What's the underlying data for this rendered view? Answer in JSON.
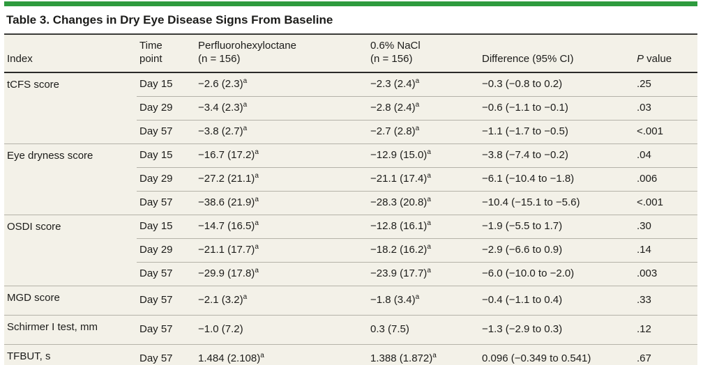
{
  "colors": {
    "brand_green": "#2e9b3e",
    "row_beige": "#f3f1e8",
    "rule_dark": "#2a2a28",
    "rule_light": "#b4b2a8",
    "text": "#1c1c1a"
  },
  "title": "Table 3. Changes in Dry Eye Disease Signs From Baseline",
  "table": {
    "headers": {
      "index": "Index",
      "time": "Time\npoint",
      "drug": "Perfluorohexyloctane\n(n = 156)",
      "nacl": "0.6% NaCl\n(n = 156)",
      "diff": "Difference (95% CI)",
      "p_italic": "P",
      "p_rest": " value"
    },
    "footnote_marker": "a",
    "groups": [
      {
        "index": "tCFS score",
        "rows": [
          {
            "time": "Day 15",
            "drug": {
              "t": "−2.6 (2.3)",
              "s": "a"
            },
            "nacl": {
              "t": "−2.3 (2.4)",
              "s": "a"
            },
            "diff": {
              "t": "−0.3 (−0.8 to 0.2)"
            },
            "p": {
              "t": ".25"
            }
          },
          {
            "time": "Day 29",
            "drug": {
              "t": "−3.4 (2.3)",
              "s": "a"
            },
            "nacl": {
              "t": "−2.8 (2.4)",
              "s": "a"
            },
            "diff": {
              "t": "−0.6 (−1.1 to −0.1)"
            },
            "p": {
              "t": ".03"
            }
          },
          {
            "time": "Day 57",
            "drug": {
              "t": "−3.8 (2.7)",
              "s": "a"
            },
            "nacl": {
              "t": "−2.7 (2.8)",
              "s": "a"
            },
            "diff": {
              "t": "−1.1 (−1.7 to −0.5)"
            },
            "p": {
              "t": "<.001"
            }
          }
        ]
      },
      {
        "index": "Eye dryness score",
        "rows": [
          {
            "time": "Day 15",
            "drug": {
              "t": "−16.7 (17.2)",
              "s": "a"
            },
            "nacl": {
              "t": "−12.9 (15.0)",
              "s": "a"
            },
            "diff": {
              "t": "−3.8 (−7.4 to −0.2)"
            },
            "p": {
              "t": ".04"
            }
          },
          {
            "time": "Day 29",
            "drug": {
              "t": "−27.2 (21.1)",
              "s": "a"
            },
            "nacl": {
              "t": "−21.1 (17.4)",
              "s": "a"
            },
            "diff": {
              "t": "−6.1 (−10.4 to −1.8)"
            },
            "p": {
              "t": ".006"
            }
          },
          {
            "time": "Day 57",
            "drug": {
              "t": "−38.6 (21.9)",
              "s": "a"
            },
            "nacl": {
              "t": "−28.3 (20.8)",
              "s": "a"
            },
            "diff": {
              "t": "−10.4 (−15.1 to −5.6)"
            },
            "p": {
              "t": "<.001"
            }
          }
        ]
      },
      {
        "index": "OSDI score",
        "rows": [
          {
            "time": "Day 15",
            "drug": {
              "t": "−14.7 (16.5)",
              "s": "a"
            },
            "nacl": {
              "t": "−12.8 (16.1)",
              "s": "a"
            },
            "diff": {
              "t": "−1.9 (−5.5 to 1.7)"
            },
            "p": {
              "t": ".30"
            }
          },
          {
            "time": "Day 29",
            "drug": {
              "t": "−21.1 (17.7)",
              "s": "a"
            },
            "nacl": {
              "t": "−18.2 (16.2)",
              "s": "a"
            },
            "diff": {
              "t": "−2.9 (−6.6 to 0.9)"
            },
            "p": {
              "t": ".14"
            }
          },
          {
            "time": "Day 57",
            "drug": {
              "t": "−29.9 (17.8)",
              "s": "a"
            },
            "nacl": {
              "t": "−23.9 (17.7)",
              "s": "a"
            },
            "diff": {
              "t": "−6.0 (−10.0 to −2.0)"
            },
            "p": {
              "t": ".003"
            }
          }
        ]
      },
      {
        "index": "MGD score",
        "rows": [
          {
            "time": "Day 57",
            "drug": {
              "t": "−2.1 (3.2)",
              "s": "a"
            },
            "nacl": {
              "t": "−1.8 (3.4)",
              "s": "a"
            },
            "diff": {
              "t": "−0.4 (−1.1 to 0.4)"
            },
            "p": {
              "t": ".33"
            }
          }
        ]
      },
      {
        "index": "Schirmer I test, mm",
        "rows": [
          {
            "time": "Day 57",
            "drug": {
              "t": "−1.0 (7.2)"
            },
            "nacl": {
              "t": "0.3 (7.5)"
            },
            "diff": {
              "t": "−1.3 (−2.9 to 0.3)"
            },
            "p": {
              "t": ".12"
            }
          }
        ]
      },
      {
        "index": "TFBUT, s",
        "rows": [
          {
            "time": "Day 57",
            "drug": {
              "t": "1.484 (2.108)",
              "s": "a"
            },
            "nacl": {
              "t": "1.388 (1.872)",
              "s": "a"
            },
            "diff": {
              "t": "0.096 (−0.349 to 0.541)"
            },
            "p": {
              "t": ".67"
            }
          }
        ]
      }
    ]
  }
}
